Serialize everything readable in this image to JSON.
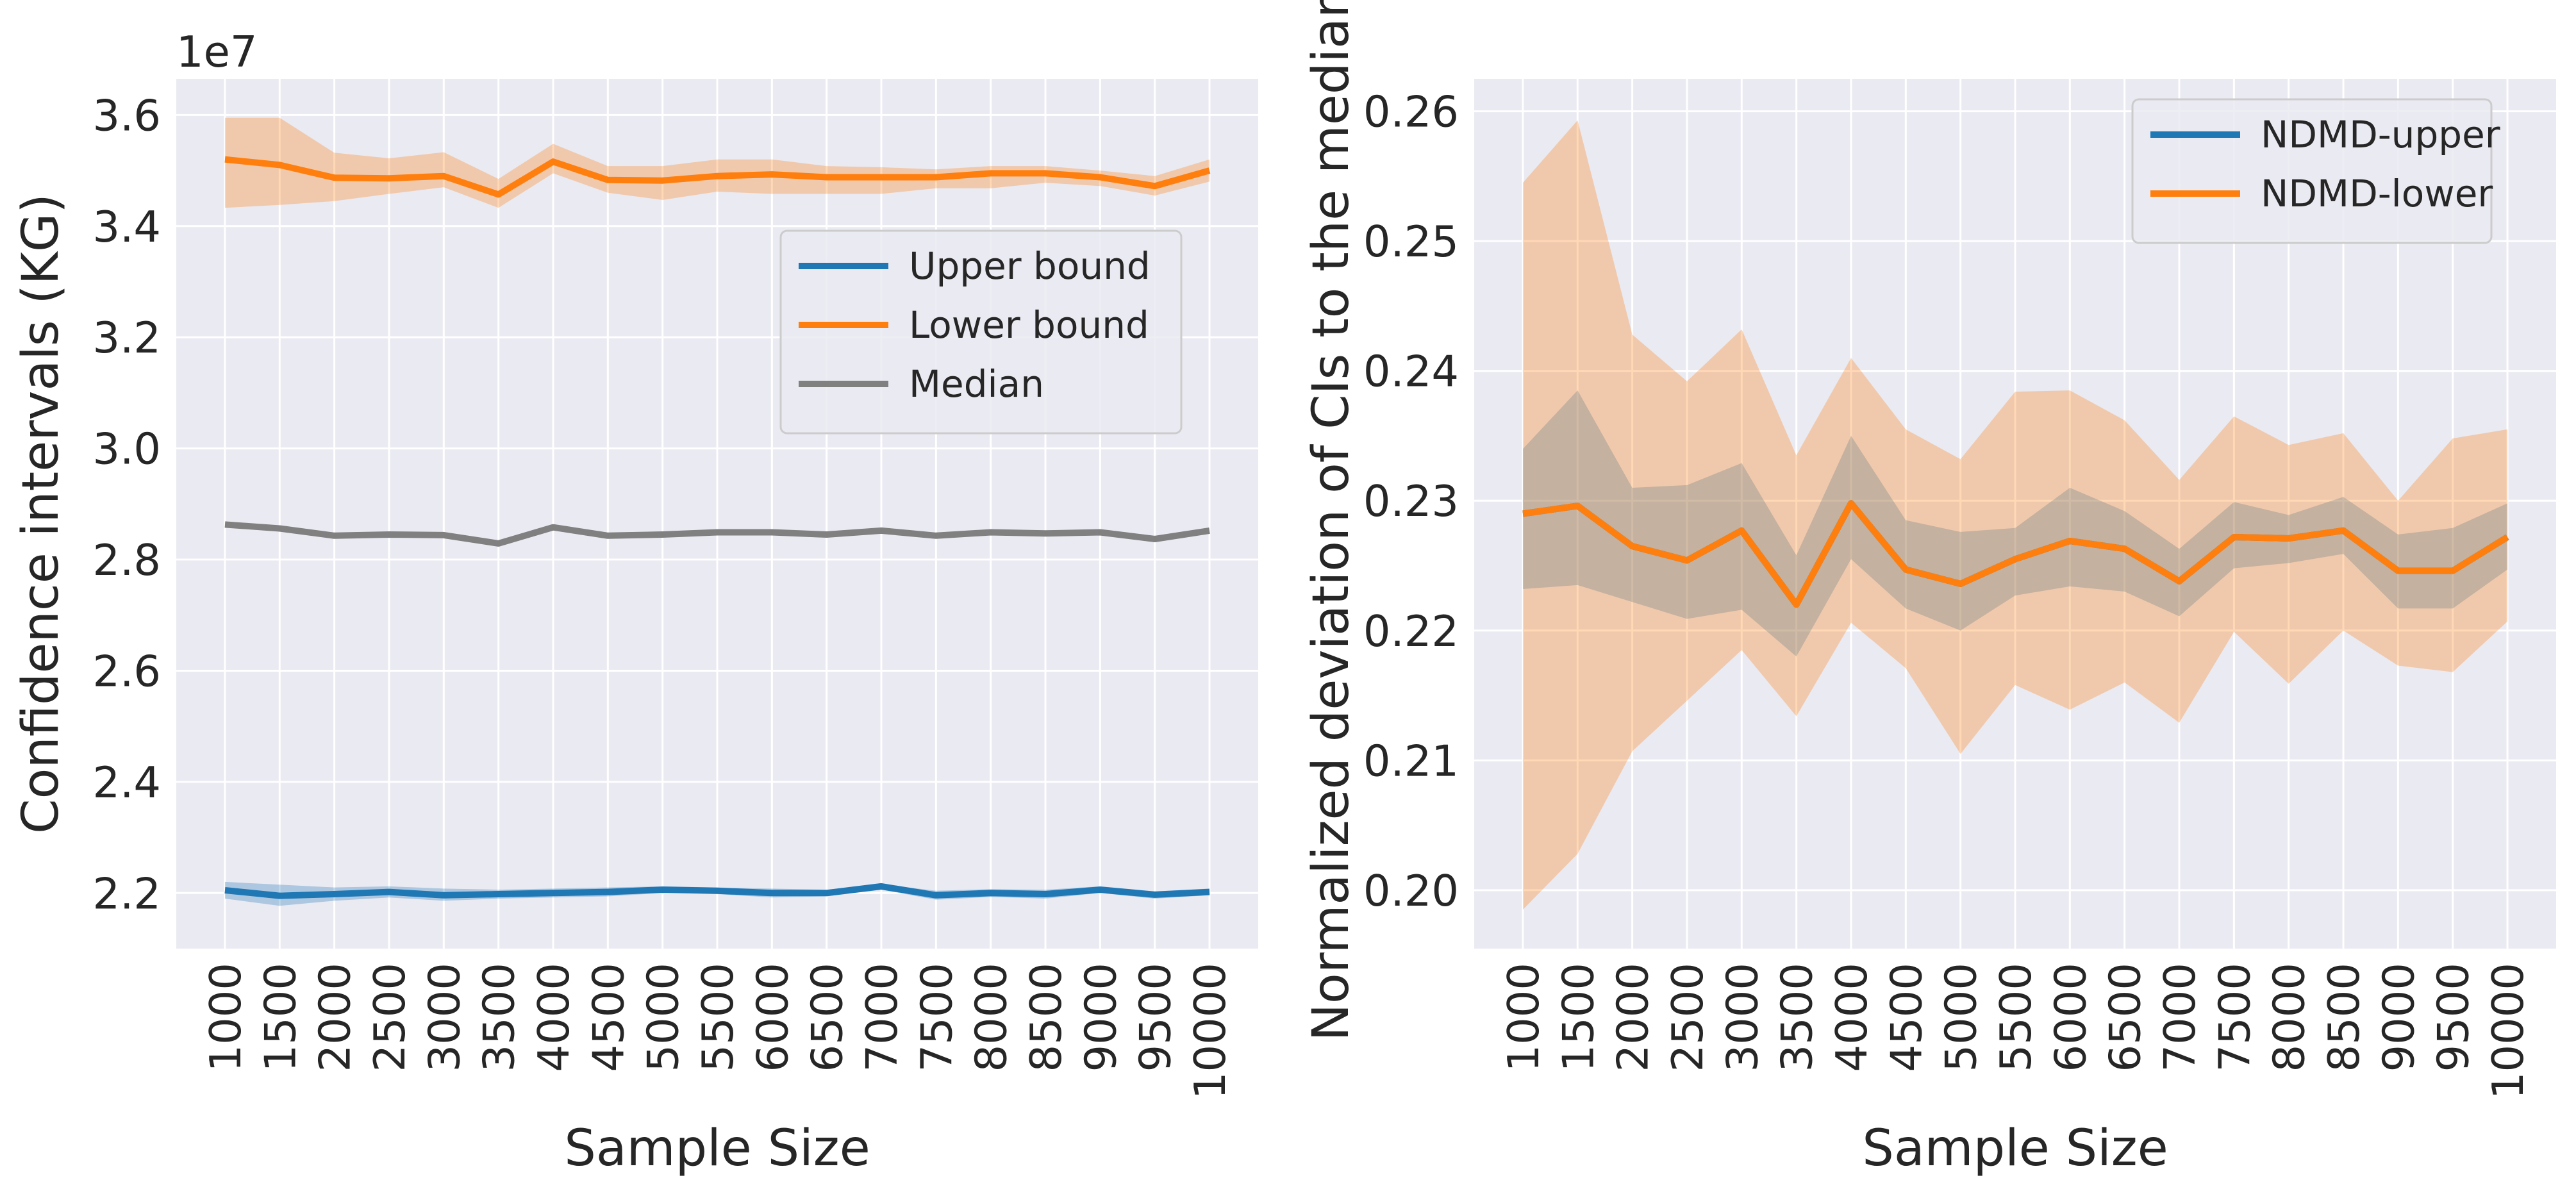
{
  "chart_data": [
    {
      "type": "line",
      "x": [
        1000,
        1500,
        2000,
        2500,
        3000,
        3500,
        4000,
        4500,
        5000,
        5500,
        6000,
        6500,
        7000,
        7500,
        8000,
        8500,
        9000,
        9500,
        10000
      ],
      "x_tick_labels": [
        "1000",
        "1500",
        "2000",
        "2500",
        "3000",
        "3500",
        "4000",
        "4500",
        "5000",
        "5500",
        "6000",
        "6500",
        "7000",
        "7500",
        "8000",
        "8500",
        "9000",
        "9500",
        "10000"
      ],
      "xlabel": "Sample Size",
      "ylabel": "Confidence intervals (KG)",
      "y_offset_text": "1e7",
      "ylim": [
        2.1,
        3.665
      ],
      "y_ticks": [
        2.2,
        2.4,
        2.6,
        2.8,
        3.0,
        3.2,
        3.4,
        3.6
      ],
      "y_tick_labels": [
        "2.2",
        "2.4",
        "2.6",
        "2.8",
        "3.0",
        "3.2",
        "3.4",
        "3.6"
      ],
      "grid": true,
      "legend_position": "center-right",
      "series": [
        {
          "name": "Upper bound",
          "color": "#1f77b4",
          "values": [
            2.205,
            2.195,
            2.198,
            2.202,
            2.196,
            2.198,
            2.2,
            2.202,
            2.206,
            2.204,
            2.2,
            2.2,
            2.212,
            2.196,
            2.2,
            2.198,
            2.206,
            2.197,
            2.202
          ],
          "band_upper": [
            2.22,
            2.215,
            2.21,
            2.212,
            2.208,
            2.206,
            2.208,
            2.21,
            2.212,
            2.21,
            2.208,
            2.206,
            2.216,
            2.204,
            2.207,
            2.206,
            2.212,
            2.203,
            2.208
          ],
          "band_lower": [
            2.19,
            2.177,
            2.186,
            2.192,
            2.186,
            2.19,
            2.192,
            2.194,
            2.2,
            2.198,
            2.192,
            2.194,
            2.206,
            2.188,
            2.193,
            2.19,
            2.2,
            2.19,
            2.196
          ]
        },
        {
          "name": "Lower bound",
          "color": "#ff7f0e",
          "values": [
            3.52,
            3.51,
            3.487,
            3.486,
            3.49,
            3.457,
            3.516,
            3.483,
            3.482,
            3.49,
            3.493,
            3.488,
            3.488,
            3.488,
            3.495,
            3.495,
            3.488,
            3.472,
            3.5
          ],
          "band_upper": [
            3.595,
            3.595,
            3.532,
            3.522,
            3.533,
            3.485,
            3.548,
            3.508,
            3.508,
            3.52,
            3.52,
            3.508,
            3.506,
            3.502,
            3.508,
            3.508,
            3.5,
            3.49,
            3.52
          ],
          "band_lower": [
            3.433,
            3.438,
            3.445,
            3.458,
            3.47,
            3.433,
            3.495,
            3.46,
            3.447,
            3.462,
            3.458,
            3.458,
            3.458,
            3.468,
            3.468,
            3.478,
            3.472,
            3.455,
            3.48
          ]
        },
        {
          "name": "Median",
          "color": "#808080",
          "values": [
            2.863,
            2.856,
            2.843,
            2.845,
            2.844,
            2.829,
            2.858,
            2.843,
            2.845,
            2.849,
            2.849,
            2.845,
            2.852,
            2.843,
            2.849,
            2.847,
            2.849,
            2.837,
            2.852
          ]
        }
      ]
    },
    {
      "type": "line",
      "x": [
        1000,
        1500,
        2000,
        2500,
        3000,
        3500,
        4000,
        4500,
        5000,
        5500,
        6000,
        6500,
        7000,
        7500,
        8000,
        8500,
        9000,
        9500,
        10000
      ],
      "x_tick_labels": [
        "1000",
        "1500",
        "2000",
        "2500",
        "3000",
        "3500",
        "4000",
        "4500",
        "5000",
        "5500",
        "6000",
        "6500",
        "7000",
        "7500",
        "8000",
        "8500",
        "9000",
        "9500",
        "10000"
      ],
      "xlabel": "Sample Size",
      "ylabel": "Normalized deviation of CIs to the median",
      "ylim": [
        0.1955,
        0.2625
      ],
      "y_ticks": [
        0.2,
        0.21,
        0.22,
        0.23,
        0.24,
        0.25,
        0.26
      ],
      "y_tick_labels": [
        "0.20",
        "0.21",
        "0.22",
        "0.23",
        "0.24",
        "0.25",
        "0.26"
      ],
      "grid": true,
      "legend_position": "top-right",
      "series": [
        {
          "name": "NDMD-upper",
          "color": "#1f77b4",
          "values": [
            0.229,
            0.2296,
            0.2265,
            0.2254,
            0.2277,
            0.222,
            0.2298,
            0.2247,
            0.2236,
            0.2255,
            0.2269,
            0.2263,
            0.2238,
            0.2272,
            0.2271,
            0.2277,
            0.2246,
            0.2246,
            0.2272
          ],
          "band_upper": [
            0.234,
            0.2385,
            0.231,
            0.2312,
            0.2329,
            0.2258,
            0.235,
            0.2285,
            0.2276,
            0.2279,
            0.231,
            0.2292,
            0.2263,
            0.2299,
            0.2289,
            0.2303,
            0.2274,
            0.2279,
            0.2298
          ],
          "band_lower": [
            0.2232,
            0.2235,
            0.2222,
            0.2209,
            0.2216,
            0.218,
            0.2255,
            0.2217,
            0.22,
            0.2227,
            0.2234,
            0.223,
            0.2211,
            0.2248,
            0.2252,
            0.2259,
            0.2217,
            0.2217,
            0.2247
          ]
        },
        {
          "name": "NDMD-lower",
          "color": "#ff7f0e",
          "values": [
            0.229,
            0.2296,
            0.2265,
            0.2254,
            0.2277,
            0.222,
            0.2298,
            0.2247,
            0.2236,
            0.2255,
            0.2269,
            0.2263,
            0.2238,
            0.2272,
            0.2271,
            0.2277,
            0.2246,
            0.2246,
            0.2272
          ],
          "band_upper": [
            0.2545,
            0.2593,
            0.2428,
            0.2392,
            0.2432,
            0.2335,
            0.241,
            0.2355,
            0.2332,
            0.2384,
            0.2385,
            0.2362,
            0.2316,
            0.2365,
            0.2343,
            0.2352,
            0.23,
            0.2348,
            0.2355
          ],
          "band_lower": [
            0.1985,
            0.2028,
            0.2107,
            0.2146,
            0.2185,
            0.2134,
            0.2206,
            0.2171,
            0.2105,
            0.2158,
            0.2139,
            0.216,
            0.2129,
            0.2199,
            0.2159,
            0.22,
            0.2173,
            0.2168,
            0.2207
          ]
        }
      ]
    }
  ]
}
